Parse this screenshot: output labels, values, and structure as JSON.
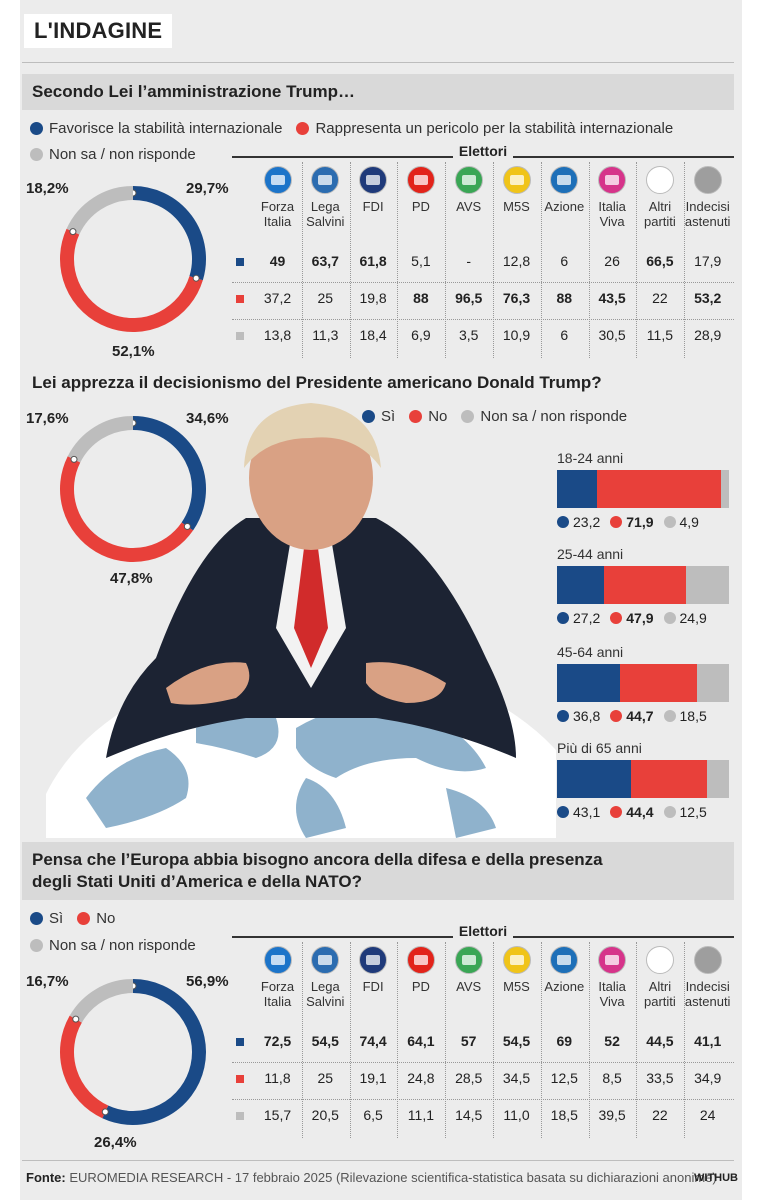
{
  "tag": "L'INDAGINE",
  "colors": {
    "blue": "#1a4a87",
    "red": "#e8403a",
    "gray": "#bdbdbd"
  },
  "q1": {
    "question": "Secondo Lei l’amministrazione Trump…",
    "legend": [
      "Favorisce la stabilità internazionale",
      "Rappresenta un pericolo per la stabilità internazionale",
      "Non sa / non risponde"
    ],
    "pct_labels": {
      "blue": "29,7%",
      "red": "52,1%",
      "gray": "18,2%"
    },
    "table_title": "Elettori"
  },
  "q2": {
    "question": "Lei apprezza il decisionismo del Presidente americano Donald Trump?",
    "legend": [
      "Sì",
      "No",
      "Non sa / non risponde"
    ],
    "pct_labels": {
      "blue": "34,6%",
      "red": "47,8%",
      "gray": "17,6%"
    }
  },
  "q3": {
    "question_line1": "Pensa che l’Europa abbia bisogno ancora della difesa e della presenza",
    "question_line2": "degli Stati Uniti d’America e della NATO?",
    "legend": [
      "Sì",
      "No",
      "Non sa / non risponde"
    ],
    "pct_labels": {
      "blue": "56,9%",
      "red": "26,4%",
      "gray": "16,7%"
    },
    "table_title": "Elettori"
  },
  "parties": [
    {
      "line1": "Forza",
      "line2": "Italia",
      "logo": "forza-italia-logo",
      "color": "#1c74c9"
    },
    {
      "line1": "Lega",
      "line2": "Salvini",
      "logo": "lega-logo",
      "color": "#2b6cb0"
    },
    {
      "line1": "FDI",
      "line2": "",
      "logo": "fdi-logo",
      "color": "#1f3a7a"
    },
    {
      "line1": "PD",
      "line2": "",
      "logo": "pd-logo",
      "color": "#e2231a"
    },
    {
      "line1": "AVS",
      "line2": "",
      "logo": "avs-logo",
      "color": "#3aa655"
    },
    {
      "line1": "M5S",
      "line2": "",
      "logo": "m5s-logo",
      "color": "#f0c419"
    },
    {
      "line1": "Azione",
      "line2": "",
      "logo": "azione-logo",
      "color": "#1d6fb8"
    },
    {
      "line1": "Italia",
      "line2": "Viva",
      "logo": "italia-viva-logo",
      "color": "#d6338a"
    },
    {
      "line1": "Altri",
      "line2": "partiti",
      "logo": "altri-logo",
      "color": "#ffffff"
    },
    {
      "line1": "Indecisi",
      "line2": "astenuti",
      "logo": "indecisi-logo",
      "color": "#9e9e9e"
    }
  ],
  "chart_data": [
    {
      "type": "pie",
      "question": "Secondo Lei l’amministrazione Trump…",
      "labels": [
        "Favorisce la stabilità internazionale",
        "Rappresenta un pericolo per la stabilità internazionale",
        "Non sa / non risponde"
      ],
      "values": [
        29.7,
        52.1,
        18.2
      ]
    },
    {
      "type": "table",
      "title": "Elettori",
      "categories": [
        "Forza Italia",
        "Lega Salvini",
        "FDI",
        "PD",
        "AVS",
        "M5S",
        "Azione",
        "Italia Viva",
        "Altri partiti",
        "Indecisi astenuti"
      ],
      "rows": [
        {
          "display": [
            "49",
            "63,7",
            "61,8",
            "5,1",
            "-",
            "12,8",
            "6",
            "26",
            "66,5",
            "17,9"
          ],
          "bold": [
            0,
            1,
            2,
            8
          ]
        },
        {
          "display": [
            "37,2",
            "25",
            "19,8",
            "88",
            "96,5",
            "76,3",
            "88",
            "43,5",
            "22",
            "53,2"
          ],
          "bold": [
            3,
            4,
            5,
            6,
            7,
            9
          ]
        },
        {
          "display": [
            "13,8",
            "11,3",
            "18,4",
            "6,9",
            "3,5",
            "10,9",
            "6",
            "30,5",
            "11,5",
            "28,9"
          ],
          "bold": []
        }
      ]
    },
    {
      "type": "pie",
      "question": "Lei apprezza il decisionismo del Presidente americano Donald Trump?",
      "labels": [
        "Sì",
        "No",
        "Non sa / non risponde"
      ],
      "values": [
        34.6,
        47.8,
        17.6
      ]
    },
    {
      "type": "bar",
      "stacked": true,
      "orientation": "horizontal",
      "categories": [
        "18-24 anni",
        "25-44 anni",
        "45-64 anni",
        "Più di 65 anni"
      ],
      "series": [
        {
          "name": "Sì",
          "values": [
            23.2,
            27.2,
            36.8,
            43.1
          ],
          "display": [
            "23,2",
            "27,2",
            "36,8",
            "43,1"
          ]
        },
        {
          "name": "No",
          "values": [
            71.9,
            47.9,
            44.7,
            44.4
          ],
          "display": [
            "71,9",
            "47,9",
            "44,7",
            "44,4"
          ]
        },
        {
          "name": "Non sa / non risponde",
          "values": [
            4.9,
            24.9,
            18.5,
            12.5
          ],
          "display": [
            "4,9",
            "24,9",
            "18,5",
            "12,5"
          ]
        }
      ]
    },
    {
      "type": "pie",
      "question": "Pensa che l’Europa abbia bisogno ancora della difesa e della presenza degli Stati Uniti d’America e della NATO?",
      "labels": [
        "Sì",
        "No",
        "Non sa / non risponde"
      ],
      "values": [
        56.9,
        26.4,
        16.7
      ]
    },
    {
      "type": "table",
      "title": "Elettori",
      "categories": [
        "Forza Italia",
        "Lega Salvini",
        "FDI",
        "PD",
        "AVS",
        "M5S",
        "Azione",
        "Italia Viva",
        "Altri partiti",
        "Indecisi astenuti"
      ],
      "rows": [
        {
          "display": [
            "72,5",
            "54,5",
            "74,4",
            "64,1",
            "57",
            "54,5",
            "69",
            "52",
            "44,5",
            "41,1"
          ],
          "bold": [
            0,
            1,
            2,
            3,
            4,
            5,
            6,
            7,
            8,
            9
          ]
        },
        {
          "display": [
            "11,8",
            "25",
            "19,1",
            "24,8",
            "28,5",
            "34,5",
            "12,5",
            "8,5",
            "33,5",
            "34,9"
          ],
          "bold": []
        },
        {
          "display": [
            "15,7",
            "20,5",
            "6,5",
            "11,1",
            "14,5",
            "11,0",
            "18,5",
            "39,5",
            "22",
            "24"
          ],
          "bold": []
        }
      ]
    }
  ],
  "footer": {
    "label": "Fonte:",
    "text": "EUROMEDIA RESEARCH - 17 febbraio 2025 (Rilevazione scientifica-statistica basata su dichiarazioni anonime)",
    "brand": "WITHUB"
  }
}
